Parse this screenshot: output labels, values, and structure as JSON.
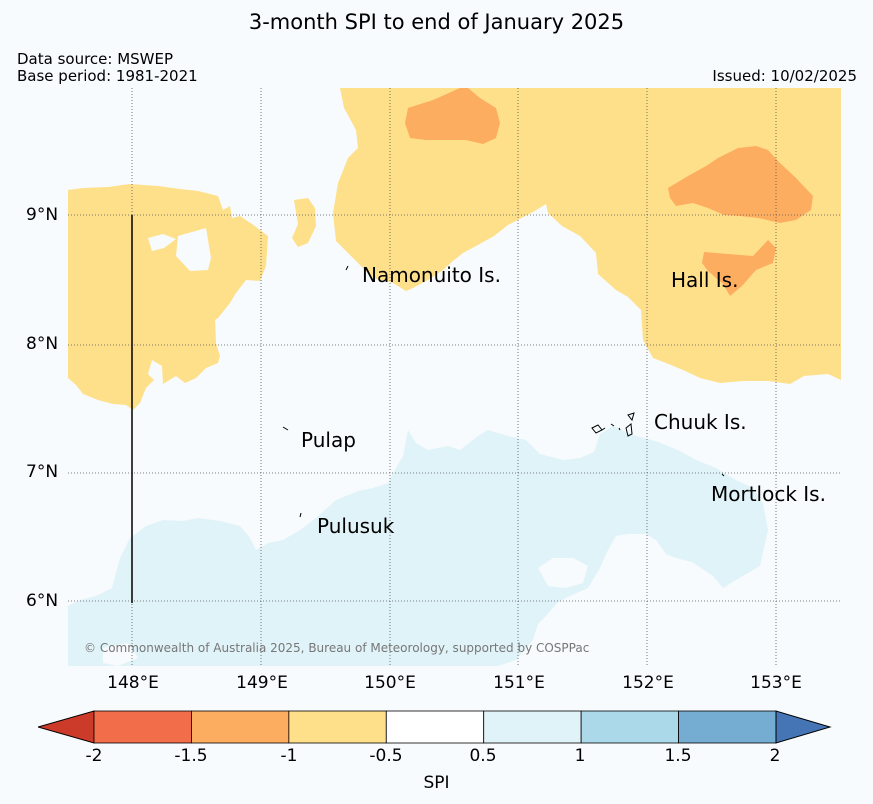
{
  "title": "3-month SPI to end of January 2025",
  "data_source": "Data source: MSWEP",
  "base_period": "Base period: 1981-2021",
  "issued": "Issued: 10/02/2025",
  "copyright": "© Commonwealth of Australia 2025, Bureau of Meteorology, supported by COSPPac",
  "lat_labels": [
    "9°N",
    "8°N",
    "7°N",
    "6°N"
  ],
  "lon_labels": [
    "148°E",
    "149°E",
    "150°E",
    "151°E",
    "152°E",
    "153°E"
  ],
  "places": {
    "namonuito": "Namonuito Is.",
    "hall": "Hall Is.",
    "pulap": "Pulap",
    "chuuk": "Chuuk Is.",
    "mortlock": "Mortlock Is.",
    "pulusuk": "Pulusuk"
  },
  "colorbar": {
    "label": "SPI",
    "ticks": [
      "-2",
      "-1.5",
      "-1",
      "-0.5",
      "0.5",
      "1",
      "1.5",
      "2"
    ],
    "colors": [
      "#cc3a2a",
      "#f26e4a",
      "#fdad60",
      "#fee08b",
      "#ffffff",
      "#e0f3f8",
      "#abd9e9",
      "#74add1",
      "#4575b4"
    ]
  }
}
